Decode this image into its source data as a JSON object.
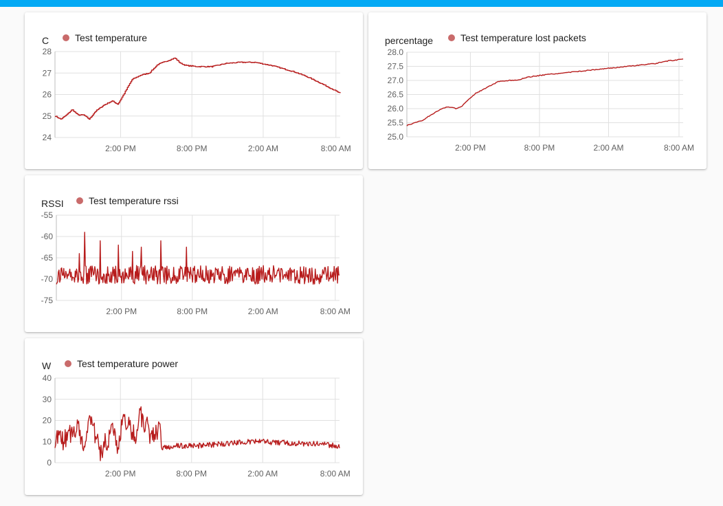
{
  "colors": {
    "header_bar": "#03a9f4",
    "series_line": "#b71c1c",
    "legend_dot": "#c96b6b",
    "grid": "#e0e0e0",
    "axis": "#bdbdbd"
  },
  "chart_data": [
    {
      "type": "line",
      "ylabel": "C",
      "series": [
        {
          "name": "Test temperature",
          "x": [
            0.0,
            0.02,
            0.04,
            0.06,
            0.08,
            0.1,
            0.12,
            0.14,
            0.155,
            0.17,
            0.185,
            0.2,
            0.22,
            0.24,
            0.27,
            0.3,
            0.33,
            0.36,
            0.38,
            0.4,
            0.42,
            0.44,
            0.46,
            0.5,
            0.55,
            0.6,
            0.65,
            0.7,
            0.72,
            0.76,
            0.8,
            0.84,
            0.88,
            0.92,
            0.95,
            0.98,
            1.0
          ],
          "values": [
            25.0,
            24.85,
            25.05,
            25.3,
            25.05,
            25.05,
            24.85,
            25.2,
            25.35,
            25.5,
            25.6,
            25.7,
            25.55,
            26.0,
            26.7,
            26.9,
            27.0,
            27.4,
            27.5,
            27.6,
            27.7,
            27.45,
            27.35,
            27.3,
            27.3,
            27.45,
            27.5,
            27.5,
            27.45,
            27.35,
            27.2,
            27.05,
            26.85,
            26.6,
            26.4,
            26.2,
            26.05
          ]
        }
      ],
      "yticks": [
        "28",
        "27",
        "26",
        "25",
        "24"
      ],
      "ylim": [
        24,
        28
      ],
      "xticks": [
        "2:00 PM",
        "8:00 PM",
        "2:00 AM",
        "8:00 AM"
      ],
      "noise": 0.02,
      "step": true
    },
    {
      "type": "line",
      "ylabel": "percentage",
      "series": [
        {
          "name": "Test temperature lost packets",
          "x": [
            0.0,
            0.03,
            0.06,
            0.09,
            0.12,
            0.14,
            0.16,
            0.18,
            0.2,
            0.22,
            0.25,
            0.29,
            0.33,
            0.37,
            0.4,
            0.43,
            0.46,
            0.5,
            0.55,
            0.6,
            0.65,
            0.7,
            0.75,
            0.8,
            0.85,
            0.9,
            0.95,
            1.0
          ],
          "values": [
            25.4,
            25.5,
            25.6,
            25.8,
            25.95,
            26.05,
            26.05,
            26.0,
            26.1,
            26.3,
            26.55,
            26.75,
            26.95,
            27.0,
            27.0,
            27.1,
            27.15,
            27.2,
            27.25,
            27.3,
            27.35,
            27.4,
            27.45,
            27.5,
            27.55,
            27.6,
            27.7,
            27.75
          ]
        }
      ],
      "yticks": [
        "28.0",
        "27.5",
        "27.0",
        "26.5",
        "26.0",
        "25.5",
        "25.0"
      ],
      "ylim": [
        25,
        28
      ],
      "xticks": [
        "2:00 PM",
        "8:00 PM",
        "2:00 AM",
        "8:00 AM"
      ],
      "noise": 0.015,
      "step": false
    },
    {
      "type": "line",
      "ylabel": "RSSI",
      "series": [
        {
          "name": "Test temperature rssi",
          "x": [
            0.0,
            0.1,
            0.15,
            0.2,
            0.25,
            0.3,
            0.35,
            0.4,
            0.5,
            0.6,
            0.7,
            0.8,
            0.9,
            1.0
          ],
          "values": [
            -69,
            -69,
            -69,
            -69,
            -69,
            -69,
            -69,
            -69,
            -69,
            -69,
            -69,
            -69,
            -69,
            -69
          ]
        }
      ],
      "yticks": [
        "-55",
        "-60",
        "-65",
        "-70",
        "-75"
      ],
      "ylim": [
        -75,
        -55
      ],
      "xticks": [
        "2:00 PM",
        "8:00 PM",
        "2:00 AM",
        "8:00 AM"
      ],
      "noise": 2.2,
      "step": false,
      "spikes": [
        [
          0.1,
          -59
        ],
        [
          0.155,
          -61
        ],
        [
          0.22,
          -62
        ],
        [
          0.3,
          -62.5
        ],
        [
          0.37,
          -61
        ],
        [
          0.46,
          -62.5
        ],
        [
          0.08,
          -64
        ],
        [
          0.27,
          -63.5
        ]
      ]
    },
    {
      "type": "line",
      "ylabel": "W",
      "series": [
        {
          "name": "Test temperature power",
          "x": [
            0.0,
            0.03,
            0.06,
            0.08,
            0.1,
            0.12,
            0.14,
            0.16,
            0.18,
            0.2,
            0.22,
            0.24,
            0.26,
            0.28,
            0.3,
            0.32,
            0.34,
            0.36,
            0.37,
            0.38,
            0.42,
            0.5,
            0.6,
            0.7,
            0.8,
            0.9,
            1.0
          ],
          "values": [
            12,
            10,
            15,
            18,
            8,
            20,
            14,
            5,
            10,
            15,
            8,
            20,
            18,
            12,
            22,
            18,
            12,
            15,
            14,
            7,
            8,
            8,
            9,
            10,
            9.5,
            9,
            8
          ]
        }
      ],
      "yticks": [
        "40",
        "30",
        "20",
        "10",
        "0"
      ],
      "ylim": [
        0,
        40
      ],
      "xticks": [
        "2:00 PM",
        "8:00 PM",
        "2:00 AM",
        "8:00 AM"
      ],
      "noise": 5,
      "step": false,
      "lowNoiseFrom": 0.38,
      "lowNoise": 1.3
    }
  ]
}
